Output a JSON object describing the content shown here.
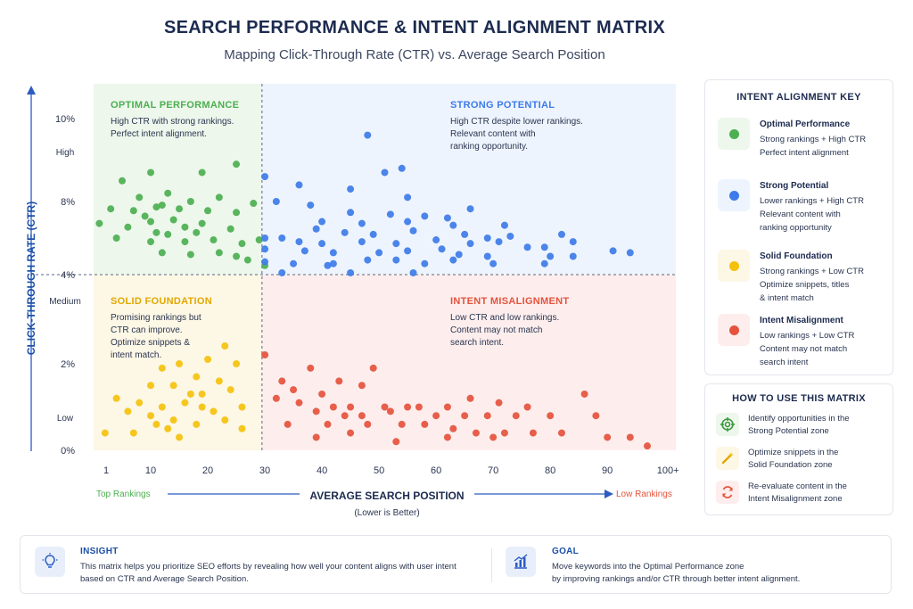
{
  "header": {
    "title": "SEARCH PERFORMANCE & INTENT ALIGNMENT MATRIX",
    "subtitle": "Mapping Click-Through Rate (CTR) vs. Average Search Position"
  },
  "colors": {
    "optimal": "#4caf50",
    "strong": "#3d7be8",
    "solid": "#f4c20d",
    "misaligned": "#e5533d",
    "optimal_bg": "#edf7ec",
    "strong_bg": "#eef4fd",
    "solid_bg": "#fdf7e6",
    "misaligned_bg": "#fdeeed"
  },
  "chart_data": {
    "type": "scatter",
    "title": "SEARCH PERFORMANCE & INTENT ALIGNMENT MATRIX",
    "subtitle": "Mapping Click-Through Rate (CTR) vs. Average Search Position",
    "xlabel": "AVERAGE SEARCH POSITION",
    "xlabel_note": "(Lower is Better)",
    "x_left_label": "Top Rankings",
    "x_right_label": "Low Rankings",
    "ylabel": "CLICK-THROUGH RATE (CTR)",
    "x_ticks": [
      "1",
      "10",
      "20",
      "30",
      "40",
      "50",
      "60",
      "70",
      "80",
      "90",
      "100+"
    ],
    "x_tick_values": [
      1,
      10,
      20,
      30,
      40,
      50,
      60,
      70,
      80,
      90,
      100
    ],
    "y_ticks": [
      "0%",
      "2%",
      "4%",
      "8%",
      "10%"
    ],
    "y_levels": [
      "Low",
      "Medium",
      "High"
    ],
    "xlim": [
      0,
      102
    ],
    "x_threshold": 29.5,
    "y_threshold_label": "4%",
    "grid": false,
    "legend": "right",
    "quadrants": [
      {
        "name": "OPTIMAL PERFORMANCE",
        "text": [
          "High CTR with strong rankings.",
          "Perfect intent alignment."
        ]
      },
      {
        "name": "STRONG POTENTIAL",
        "text": [
          "High CTR despite lower rankings.",
          "Relevant content with",
          "ranking opportunity."
        ]
      },
      {
        "name": "SOLID FOUNDATION",
        "text": [
          "Promising rankings but",
          "CTR can improve.",
          "Optimize snippets &",
          "intent match."
        ]
      },
      {
        "name": "INTENT MISALIGNMENT",
        "text": [
          "Low CTR and low rankings.",
          "Content may not match",
          "search intent."
        ]
      }
    ],
    "series": [
      {
        "name": "Optimal Performance",
        "points": [
          [
            25,
            8.9
          ],
          [
            5,
            8.5
          ],
          [
            10,
            8.7
          ],
          [
            19,
            8.7
          ],
          [
            8,
            8.1
          ],
          [
            13,
            8.2
          ],
          [
            17,
            8.0
          ],
          [
            22,
            8.1
          ],
          [
            28,
            7.9
          ],
          [
            12,
            7.8
          ],
          [
            3,
            7.6
          ],
          [
            7,
            7.5
          ],
          [
            11,
            7.7
          ],
          [
            15,
            7.6
          ],
          [
            20,
            7.5
          ],
          [
            25,
            7.4
          ],
          [
            9,
            7.2
          ],
          [
            14,
            7.0
          ],
          [
            1,
            6.8
          ],
          [
            6,
            6.6
          ],
          [
            10,
            6.9
          ],
          [
            16,
            6.6
          ],
          [
            19,
            6.8
          ],
          [
            24,
            6.5
          ],
          [
            11,
            6.3
          ],
          [
            13,
            6.2
          ],
          [
            18,
            6.3
          ],
          [
            4,
            6.0
          ],
          [
            10,
            5.8
          ],
          [
            16,
            5.8
          ],
          [
            21,
            5.9
          ],
          [
            26,
            5.7
          ],
          [
            29,
            5.9
          ],
          [
            12,
            5.2
          ],
          [
            17,
            5.1
          ],
          [
            22,
            5.2
          ],
          [
            25,
            5.0
          ],
          [
            27,
            4.8
          ],
          [
            30,
            4.5
          ]
        ]
      },
      {
        "name": "Strong Potential",
        "points": [
          [
            48,
            9.6
          ],
          [
            54,
            8.8
          ],
          [
            51,
            8.7
          ],
          [
            30,
            8.6
          ],
          [
            36,
            8.4
          ],
          [
            45,
            8.3
          ],
          [
            32,
            8.0
          ],
          [
            55,
            8.1
          ],
          [
            38,
            7.8
          ],
          [
            66,
            7.6
          ],
          [
            45,
            7.4
          ],
          [
            52,
            7.3
          ],
          [
            58,
            7.2
          ],
          [
            62,
            7.1
          ],
          [
            40,
            6.9
          ],
          [
            47,
            6.8
          ],
          [
            55,
            6.9
          ],
          [
            63,
            6.7
          ],
          [
            72,
            6.7
          ],
          [
            39,
            6.5
          ],
          [
            44,
            6.3
          ],
          [
            49,
            6.2
          ],
          [
            56,
            6.4
          ],
          [
            65,
            6.2
          ],
          [
            69,
            6.0
          ],
          [
            73,
            6.1
          ],
          [
            82,
            6.2
          ],
          [
            30,
            6.0
          ],
          [
            33,
            6.0
          ],
          [
            36,
            5.8
          ],
          [
            40,
            5.7
          ],
          [
            47,
            5.8
          ],
          [
            53,
            5.7
          ],
          [
            60,
            5.9
          ],
          [
            66,
            5.7
          ],
          [
            71,
            5.8
          ],
          [
            76,
            5.5
          ],
          [
            79,
            5.5
          ],
          [
            84,
            5.8
          ],
          [
            91,
            5.3
          ],
          [
            94,
            5.2
          ],
          [
            30,
            5.4
          ],
          [
            37,
            5.3
          ],
          [
            42,
            5.2
          ],
          [
            50,
            5.2
          ],
          [
            55,
            5.3
          ],
          [
            61,
            5.4
          ],
          [
            64,
            5.1
          ],
          [
            69,
            5.0
          ],
          [
            80,
            5.0
          ],
          [
            84,
            5.0
          ],
          [
            30,
            4.7
          ],
          [
            35,
            4.6
          ],
          [
            42,
            4.6
          ],
          [
            48,
            4.8
          ],
          [
            53,
            4.8
          ],
          [
            58,
            4.6
          ],
          [
            63,
            4.8
          ],
          [
            70,
            4.6
          ],
          [
            79,
            4.6
          ],
          [
            41,
            4.5
          ],
          [
            45,
            4.1
          ],
          [
            56,
            4.1
          ],
          [
            33,
            4.1
          ]
        ]
      },
      {
        "name": "Solid Foundation",
        "points": [
          [
            23,
            2.4
          ],
          [
            20,
            2.1
          ],
          [
            25,
            2.0
          ],
          [
            15,
            2.0
          ],
          [
            12,
            1.9
          ],
          [
            18,
            1.7
          ],
          [
            22,
            1.6
          ],
          [
            10,
            1.5
          ],
          [
            14,
            1.5
          ],
          [
            17,
            1.3
          ],
          [
            19,
            1.3
          ],
          [
            24,
            1.4
          ],
          [
            4,
            1.2
          ],
          [
            8,
            1.1
          ],
          [
            12,
            1.0
          ],
          [
            16,
            1.1
          ],
          [
            19,
            1.0
          ],
          [
            21,
            0.9
          ],
          [
            26,
            1.0
          ],
          [
            6,
            0.9
          ],
          [
            10,
            0.8
          ],
          [
            14,
            0.7
          ],
          [
            18,
            0.6
          ],
          [
            23,
            0.7
          ],
          [
            7,
            0.4
          ],
          [
            11,
            0.6
          ],
          [
            13,
            0.5
          ],
          [
            26,
            0.5
          ],
          [
            2,
            0.4
          ],
          [
            15,
            0.3
          ]
        ]
      },
      {
        "name": "Intent Misalignment",
        "points": [
          [
            30,
            2.2
          ],
          [
            38,
            1.9
          ],
          [
            49,
            1.9
          ],
          [
            33,
            1.6
          ],
          [
            43,
            1.6
          ],
          [
            47,
            1.5
          ],
          [
            86,
            1.3
          ],
          [
            35,
            1.4
          ],
          [
            40,
            1.3
          ],
          [
            32,
            1.2
          ],
          [
            36,
            1.1
          ],
          [
            42,
            1.0
          ],
          [
            45,
            1.0
          ],
          [
            51,
            1.0
          ],
          [
            55,
            1.0
          ],
          [
            57,
            1.0
          ],
          [
            62,
            1.0
          ],
          [
            66,
            1.2
          ],
          [
            71,
            1.1
          ],
          [
            76,
            1.0
          ],
          [
            39,
            0.9
          ],
          [
            44,
            0.8
          ],
          [
            47,
            0.8
          ],
          [
            52,
            0.9
          ],
          [
            60,
            0.8
          ],
          [
            65,
            0.8
          ],
          [
            69,
            0.8
          ],
          [
            74,
            0.8
          ],
          [
            80,
            0.8
          ],
          [
            88,
            0.8
          ],
          [
            34,
            0.6
          ],
          [
            41,
            0.6
          ],
          [
            48,
            0.6
          ],
          [
            54,
            0.6
          ],
          [
            58,
            0.6
          ],
          [
            63,
            0.5
          ],
          [
            67,
            0.4
          ],
          [
            72,
            0.4
          ],
          [
            77,
            0.4
          ],
          [
            82,
            0.4
          ],
          [
            90,
            0.3
          ],
          [
            94,
            0.3
          ],
          [
            97,
            0.1
          ],
          [
            39,
            0.3
          ],
          [
            45,
            0.4
          ],
          [
            53,
            0.2
          ],
          [
            62,
            0.3
          ],
          [
            70,
            0.3
          ]
        ]
      }
    ]
  },
  "key": {
    "title": "INTENT ALIGNMENT KEY",
    "items": [
      {
        "name": "Optimal Performance",
        "desc": "Strong rankings + High CTR\nPerfect intent alignment"
      },
      {
        "name": "Strong Potential",
        "desc": "Lower rankings + High CTR\nRelevant content with\nranking opportunity"
      },
      {
        "name": "Solid Foundation",
        "desc": "Strong rankings + Low CTR\nOptimize snippets, titles\n& intent match"
      },
      {
        "name": "Intent Misalignment",
        "desc": "Low rankings + Low CTR\nContent may not match\nsearch intent"
      }
    ]
  },
  "how_to": {
    "title": "HOW TO USE THIS MATRIX",
    "items": [
      {
        "icon": "target-icon",
        "text": "Identify opportunities in the\nStrong Potential zone"
      },
      {
        "icon": "wand-icon",
        "text": "Optimize snippets in the\nSolid Foundation zone"
      },
      {
        "icon": "refresh-icon",
        "text": "Re-evaluate content in the\nIntent Misalignment zone"
      }
    ]
  },
  "banner": {
    "insight_title": "INSIGHT",
    "insight_text": "This matrix helps you prioritize SEO efforts by revealing how well your content aligns with user intent\nbased on CTR and Average Search Position.",
    "goal_title": "GOAL",
    "goal_text": "Move keywords into the Optimal Performance zone\nby improving rankings and/or CTR through better intent alignment."
  }
}
